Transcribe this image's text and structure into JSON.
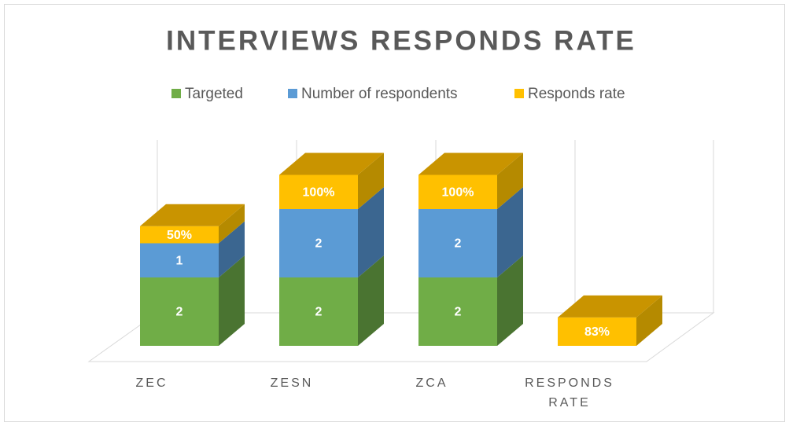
{
  "chart_data": {
    "type": "bar3d_stacked",
    "title": "INTERVIEWS RESPONDS RATE",
    "categories": [
      "ZEC",
      "ZESN",
      "ZCA",
      "RESPONDS RATE"
    ],
    "series": [
      {
        "name": "Targeted",
        "color": "#70ad47",
        "side_color": "#4a7431",
        "values": [
          2,
          2,
          2,
          null
        ]
      },
      {
        "name": "Number of respondents",
        "color": "#5b9bd5",
        "side_color": "#3b6690",
        "values": [
          1,
          2,
          2,
          null
        ]
      },
      {
        "name": "Responds rate",
        "color": "#ffc000",
        "side_color": "#b58a00",
        "top_color": "#c99400",
        "values": [
          0.5,
          1,
          1,
          0.83
        ],
        "value_labels": [
          "50%",
          "100%",
          "100%",
          "83%"
        ]
      }
    ],
    "legend": "top"
  }
}
